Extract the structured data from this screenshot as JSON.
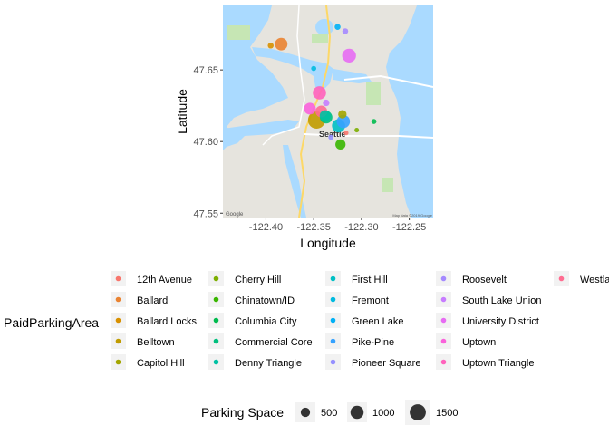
{
  "chart_data": {
    "type": "scatter",
    "basemap": "street map of Seattle",
    "xlabel": "Longitude",
    "ylabel": "Latitude",
    "xlim": [
      -122.445,
      -122.225
    ],
    "ylim": [
      47.547,
      47.695
    ],
    "x_ticks": [
      -122.4,
      -122.35,
      -122.3,
      -122.25
    ],
    "x_tick_labels": [
      "-122.40",
      "-122.35",
      "-122.30",
      "-122.25"
    ],
    "y_ticks": [
      47.55,
      47.6,
      47.65
    ],
    "y_tick_labels": [
      "47.55",
      "47.60",
      "47.65"
    ],
    "grid": false,
    "map_labels": {
      "city": "Seattle",
      "attribution": "Google",
      "copyright": "Map data ©2019 Google"
    },
    "color_legend": {
      "title": "PaidParkingArea",
      "position": "bottom",
      "columns": [
        [
          {
            "label": "12th Avenue",
            "color": "#F8766D"
          },
          {
            "label": "Ballard",
            "color": "#EA8331"
          },
          {
            "label": "Ballard Locks",
            "color": "#D89000"
          },
          {
            "label": "Belltown",
            "color": "#C09B00"
          },
          {
            "label": "Capitol Hill",
            "color": "#A3A500"
          }
        ],
        [
          {
            "label": "Cherry Hill",
            "color": "#7CAE00"
          },
          {
            "label": "Chinatown/ID",
            "color": "#39B600"
          },
          {
            "label": "Columbia City",
            "color": "#00BB4E"
          },
          {
            "label": "Commercial Core",
            "color": "#00BF7D"
          },
          {
            "label": "Denny Triangle",
            "color": "#00C1A3"
          }
        ],
        [
          {
            "label": "First Hill",
            "color": "#00BFC4"
          },
          {
            "label": "Fremont",
            "color": "#00BAE0"
          },
          {
            "label": "Green Lake",
            "color": "#00B0F6"
          },
          {
            "label": "Pike-Pine",
            "color": "#35A2FF"
          },
          {
            "label": "Pioneer Square",
            "color": "#9590FF"
          }
        ],
        [
          {
            "label": "Roosevelt",
            "color": "#A58AFF"
          },
          {
            "label": "South Lake Union",
            "color": "#C77CFF"
          },
          {
            "label": "University District",
            "color": "#E76BF3"
          },
          {
            "label": "Uptown",
            "color": "#FA62DB"
          },
          {
            "label": "Uptown Triangle",
            "color": "#FF62BC"
          }
        ],
        [
          {
            "label": "Westlake",
            "color": "#FF6C91"
          }
        ]
      ]
    },
    "size_legend": {
      "title": "Parking Space",
      "values": [
        500,
        1000,
        1500
      ],
      "labels": [
        "500",
        "1000",
        "1500"
      ]
    },
    "points": [
      {
        "area": "12th Avenue",
        "lon": -122.316,
        "lat": 47.606,
        "size": 120
      },
      {
        "area": "Ballard",
        "lon": -122.384,
        "lat": 47.668,
        "size": 900
      },
      {
        "area": "Ballard Locks",
        "lon": -122.395,
        "lat": 47.667,
        "size": 200
      },
      {
        "area": "Belltown",
        "lon": -122.347,
        "lat": 47.615,
        "size": 1700
      },
      {
        "area": "Capitol Hill",
        "lon": -122.32,
        "lat": 47.619,
        "size": 400
      },
      {
        "area": "Cherry Hill",
        "lon": -122.305,
        "lat": 47.608,
        "size": 120
      },
      {
        "area": "Chinatown/ID",
        "lon": -122.322,
        "lat": 47.598,
        "size": 600
      },
      {
        "area": "Columbia City",
        "lon": -122.287,
        "lat": 47.614,
        "size": 150
      },
      {
        "area": "Commercial Core",
        "lon": -122.337,
        "lat": 47.617,
        "size": 900
      },
      {
        "area": "Denny Triangle",
        "lon": -122.338,
        "lat": 47.618,
        "size": 700
      },
      {
        "area": "First Hill",
        "lon": -122.324,
        "lat": 47.611,
        "size": 1000
      },
      {
        "area": "Fremont",
        "lon": -122.35,
        "lat": 47.651,
        "size": 150
      },
      {
        "area": "Green Lake",
        "lon": -122.325,
        "lat": 47.68,
        "size": 200
      },
      {
        "area": "Pike-Pine",
        "lon": -122.319,
        "lat": 47.614,
        "size": 1000
      },
      {
        "area": "Pioneer Square",
        "lon": -122.332,
        "lat": 47.603,
        "size": 150
      },
      {
        "area": "Roosevelt",
        "lon": -122.317,
        "lat": 47.677,
        "size": 200
      },
      {
        "area": "South Lake Union",
        "lon": -122.337,
        "lat": 47.627,
        "size": 250
      },
      {
        "area": "University District",
        "lon": -122.313,
        "lat": 47.66,
        "size": 1100
      },
      {
        "area": "Uptown",
        "lon": -122.354,
        "lat": 47.623,
        "size": 800
      },
      {
        "area": "Uptown Triangle",
        "lon": -122.344,
        "lat": 47.634,
        "size": 1000
      },
      {
        "area": "Westlake",
        "lon": -122.342,
        "lat": 47.621,
        "size": 800
      }
    ]
  }
}
